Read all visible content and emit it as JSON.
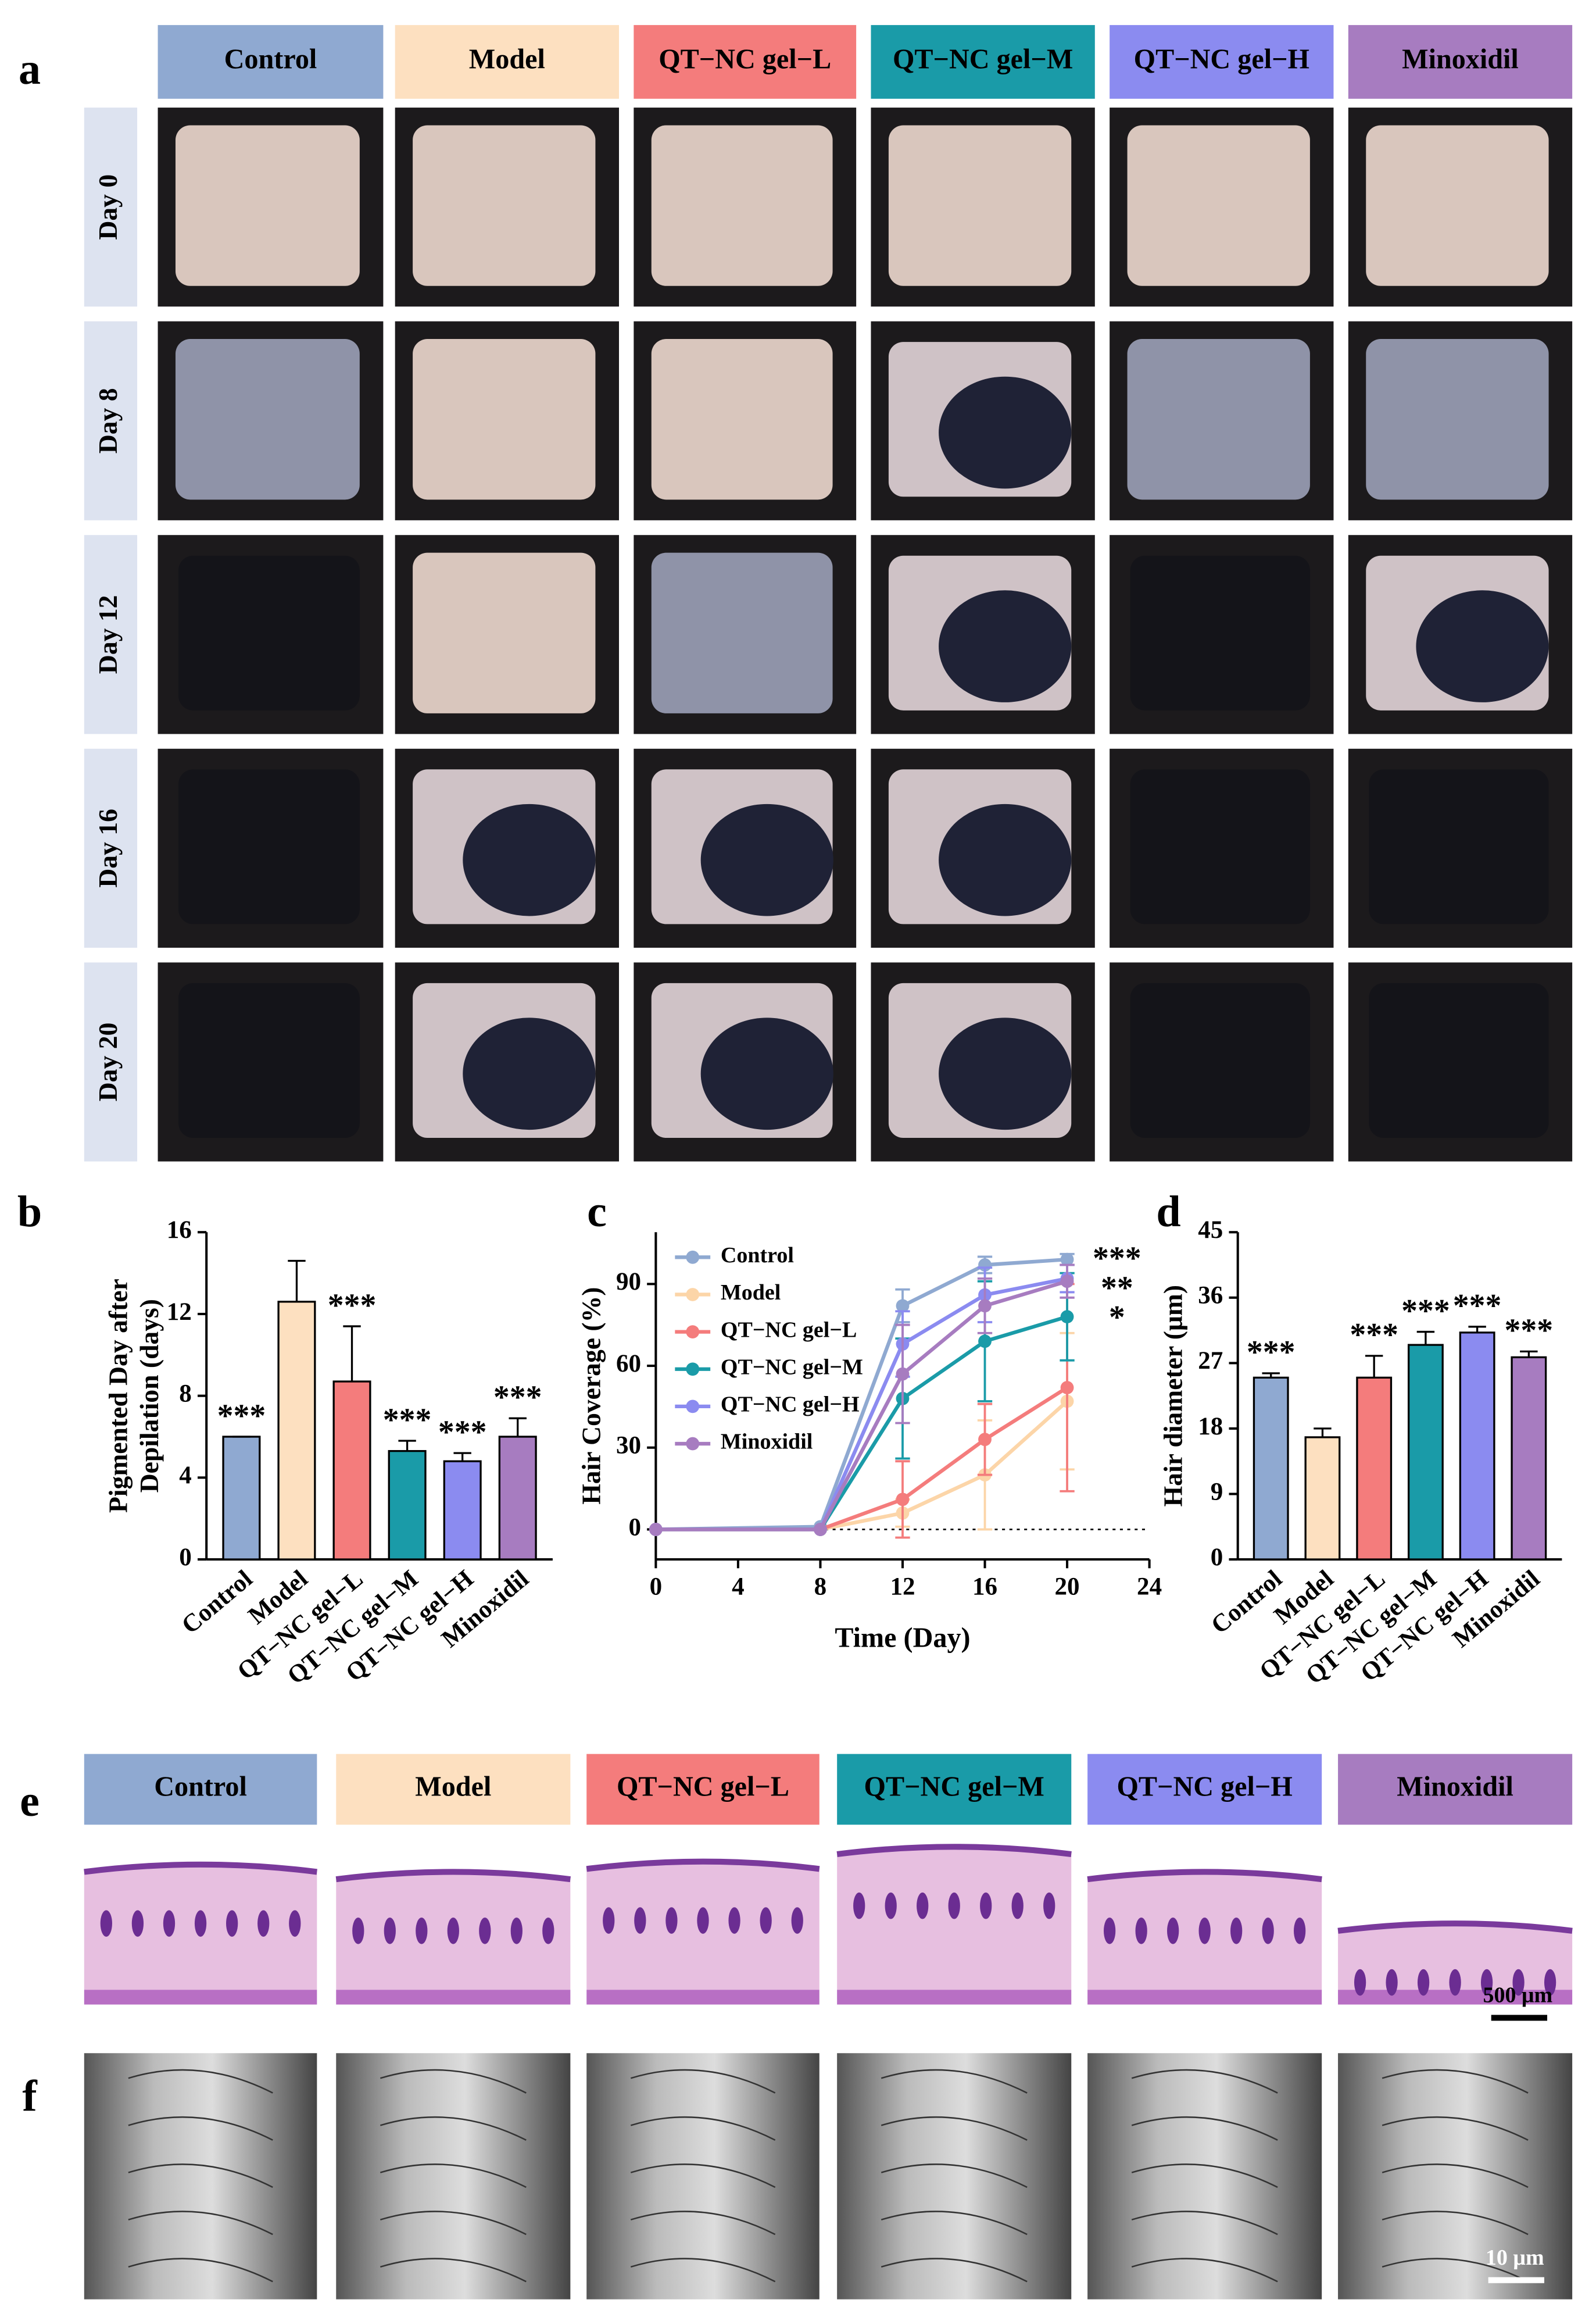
{
  "panel_labels": [
    "a",
    "b",
    "c",
    "d",
    "e",
    "f"
  ],
  "panel_a": {
    "groups": [
      "Control",
      "Model",
      "QT−NC gel−L",
      "QT−NC gel−M",
      "QT−NC gel−H",
      "Minoxidil"
    ],
    "group_colors": [
      "#8fa9d1",
      "#fde0c0",
      "#f47c7c",
      "#1a9ba8",
      "#8b8bf0",
      "#a77cc0"
    ],
    "days": [
      "Day 0",
      "Day 8",
      "Day 12",
      "Day 16",
      "Day 20"
    ]
  },
  "panel_e": {
    "groups": [
      "Control",
      "Model",
      "QT−NC gel−L",
      "QT−NC gel−M",
      "QT−NC gel−H",
      "Minoxidil"
    ],
    "scale_bar": "500 μm"
  },
  "panel_f": {
    "scale_bar": "10 μm"
  },
  "chart_data": [
    {
      "type": "bar",
      "ylabel": [
        "Pigmented Day after",
        "Depilation (days)"
      ],
      "categories": [
        "Control",
        "Model",
        "QT−NC gel−L",
        "QT−NC gel−M",
        "QT−NC gel−H",
        "Minoxidil"
      ],
      "values": [
        6,
        12.6,
        8.7,
        5.3,
        4.8,
        6
      ],
      "errors": [
        0,
        2,
        2.7,
        0.5,
        0.4,
        0.9
      ],
      "colors": [
        "#8fa9d1",
        "#fde0c0",
        "#f47c7c",
        "#1a9ba8",
        "#8b8bf0",
        "#a77cc0"
      ],
      "annotations": [
        "***",
        null,
        "***",
        "***",
        "***",
        "***"
      ],
      "ylim": [
        0,
        16
      ],
      "yticks": [
        0,
        4,
        8,
        12,
        16
      ]
    },
    {
      "type": "line",
      "xlabel": "Time (Day)",
      "ylabel": "Hair Coverage (%)",
      "x": [
        0,
        8,
        12,
        16,
        20
      ],
      "series": [
        {
          "name": "Control",
          "color": "#8fa9d1",
          "values": [
            0,
            1,
            82,
            97,
            99
          ],
          "errors": [
            0,
            0,
            6,
            3,
            2
          ]
        },
        {
          "name": "Model",
          "color": "#fcd5a8",
          "values": [
            0,
            0,
            6,
            20,
            47
          ],
          "errors": [
            0,
            0,
            5,
            20,
            25
          ]
        },
        {
          "name": "QT−NC gel−L",
          "color": "#f47c7c",
          "values": [
            0,
            0,
            11,
            33,
            52
          ],
          "errors": [
            0,
            0,
            14,
            13,
            38
          ]
        },
        {
          "name": "QT−NC gel−M",
          "color": "#1a9ba8",
          "values": [
            0,
            0,
            48,
            69,
            78
          ],
          "errors": [
            0,
            0,
            22,
            22,
            16
          ]
        },
        {
          "name": "QT−NC gel−H",
          "color": "#8b8bf0",
          "values": [
            0,
            0,
            68,
            86,
            92
          ],
          "errors": [
            0,
            0,
            12,
            10,
            5
          ]
        },
        {
          "name": "Minoxidil",
          "color": "#a77cc0",
          "values": [
            0,
            0,
            57,
            82,
            91
          ],
          "errors": [
            0,
            0,
            18,
            10,
            6
          ]
        }
      ],
      "annotations": [
        "***",
        "**",
        "*"
      ],
      "xlim": [
        0,
        24
      ],
      "xticks": [
        0,
        4,
        8,
        12,
        16,
        20,
        24
      ],
      "ylim": [
        -11,
        109
      ],
      "yticks": [
        0,
        30,
        60,
        90
      ]
    },
    {
      "type": "bar",
      "ylabel": "Hair diameter (μm)",
      "categories": [
        "Control",
        "Model",
        "QT−NC gel−L",
        "QT−NC gel−M",
        "QT−NC gel−H",
        "Minoxidil"
      ],
      "values": [
        25,
        16.8,
        25,
        29.5,
        31.2,
        27.8
      ],
      "errors": [
        0.6,
        1.2,
        3,
        1.8,
        0.8,
        0.8
      ],
      "colors": [
        "#8fa9d1",
        "#fde0c0",
        "#f47c7c",
        "#1a9ba8",
        "#8b8bf0",
        "#a77cc0"
      ],
      "annotations": [
        "***",
        null,
        "***",
        "***",
        "***",
        "***"
      ],
      "ylim": [
        0,
        45
      ],
      "yticks": [
        0,
        9,
        18,
        27,
        36,
        45
      ]
    }
  ]
}
